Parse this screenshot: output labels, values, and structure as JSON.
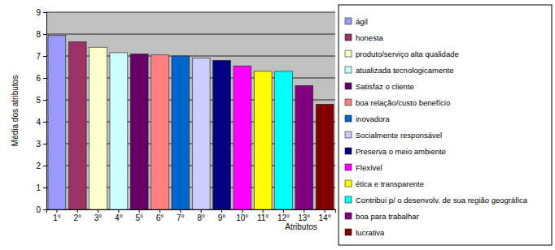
{
  "chart_data": {
    "type": "bar",
    "x_label": "Atributos",
    "y_label": "Média dos atributos",
    "categories": [
      "1°",
      "2°",
      "3°",
      "4°",
      "5°",
      "6°",
      "7°",
      "8°",
      "9°",
      "10°",
      "11°",
      "12°",
      "13°",
      "14°"
    ],
    "series": [
      {
        "name": "ágil",
        "color": "#9999ff",
        "values": [
          7.95,
          null,
          null,
          null,
          null,
          null,
          null,
          null,
          null,
          null,
          null,
          null,
          null,
          null
        ]
      },
      {
        "name": "honesta",
        "color": "#993366",
        "values": [
          null,
          7.65,
          null,
          null,
          null,
          null,
          null,
          null,
          null,
          null,
          null,
          null,
          null,
          null
        ]
      },
      {
        "name": "produto/serviço alta qualidade",
        "color": "#ffffcc",
        "values": [
          null,
          null,
          7.4,
          null,
          null,
          null,
          null,
          null,
          null,
          null,
          null,
          null,
          null,
          null
        ]
      },
      {
        "name": "atualizada tecnologicamente",
        "color": "#ccffff",
        "values": [
          null,
          null,
          null,
          7.15,
          null,
          null,
          null,
          null,
          null,
          null,
          null,
          null,
          null,
          null
        ]
      },
      {
        "name": "Satisfaz o cliente",
        "color": "#660066",
        "values": [
          null,
          null,
          null,
          null,
          7.1,
          null,
          null,
          null,
          null,
          null,
          null,
          null,
          null,
          null
        ]
      },
      {
        "name": "boa relação/custo benefício",
        "color": "#ff8080",
        "values": [
          null,
          null,
          null,
          null,
          null,
          7.05,
          null,
          null,
          null,
          null,
          null,
          null,
          null,
          null
        ]
      },
      {
        "name": "inovadora",
        "color": "#0066cc",
        "values": [
          null,
          null,
          null,
          null,
          null,
          null,
          7.0,
          null,
          null,
          null,
          null,
          null,
          null,
          null
        ]
      },
      {
        "name": "Socialmente responsável",
        "color": "#ccccff",
        "values": [
          null,
          null,
          null,
          null,
          null,
          null,
          null,
          6.9,
          null,
          null,
          null,
          null,
          null,
          null
        ]
      },
      {
        "name": "Preserva o meio ambiente",
        "color": "#000080",
        "values": [
          null,
          null,
          null,
          null,
          null,
          null,
          null,
          null,
          6.8,
          null,
          null,
          null,
          null,
          null
        ]
      },
      {
        "name": "Flexível",
        "color": "#ff00ff",
        "values": [
          null,
          null,
          null,
          null,
          null,
          null,
          null,
          null,
          null,
          6.55,
          null,
          null,
          null,
          null
        ]
      },
      {
        "name": "ética e transparente",
        "color": "#ffff00",
        "values": [
          null,
          null,
          null,
          null,
          null,
          null,
          null,
          null,
          null,
          null,
          6.3,
          null,
          null,
          null
        ]
      },
      {
        "name": "Contribui p/ o desenvolv. de sua região geográfica",
        "color": "#00ffff",
        "values": [
          null,
          null,
          null,
          null,
          null,
          null,
          null,
          null,
          null,
          null,
          null,
          6.3,
          null,
          null
        ]
      },
      {
        "name": "boa para trabalhar",
        "color": "#800080",
        "values": [
          null,
          null,
          null,
          null,
          null,
          null,
          null,
          null,
          null,
          null,
          null,
          null,
          5.65,
          null
        ]
      },
      {
        "name": "lucrativa",
        "color": "#800000",
        "values": [
          null,
          null,
          null,
          null,
          null,
          null,
          null,
          null,
          null,
          null,
          null,
          null,
          null,
          4.8
        ]
      }
    ],
    "ylim": [
      0,
      9
    ],
    "yticks": [
      0,
      1,
      2,
      3,
      4,
      5,
      6,
      7,
      8,
      9
    ],
    "grid": true,
    "legend": "right"
  }
}
